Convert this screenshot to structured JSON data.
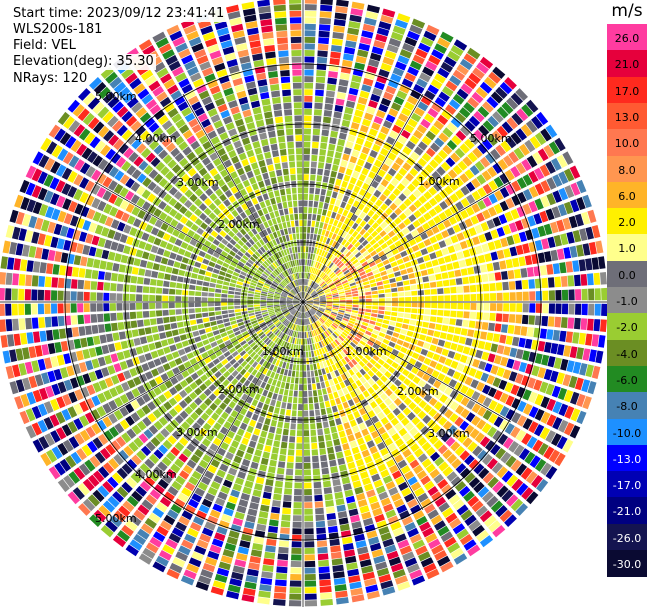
{
  "info": {
    "start_time": "Start time: 2023/09/12 23:41:41",
    "instrument": "WLS200s-181",
    "field": "Field: VEL",
    "elevation": "Elevation(deg): 35.30",
    "nrays": "NRays: 120"
  },
  "colorbar": {
    "unit": "m/s",
    "levels": [
      {
        "label": "26.0",
        "color": "#ff3ca0"
      },
      {
        "label": "21.0",
        "color": "#e6003c"
      },
      {
        "label": "17.0",
        "color": "#ff2a1e"
      },
      {
        "label": "13.0",
        "color": "#ff5a32"
      },
      {
        "label": "10.0",
        "color": "#ff7850"
      },
      {
        "label": "8.0",
        "color": "#ff9650"
      },
      {
        "label": "6.0",
        "color": "#ffb428"
      },
      {
        "label": "2.0",
        "color": "#fff000"
      },
      {
        "label": "1.0",
        "color": "#ffff8c"
      },
      {
        "label": "0.0",
        "color": "#6e6e78"
      },
      {
        "label": "-1.0",
        "color": "#8c8c8c"
      },
      {
        "label": "-2.0",
        "color": "#9acd32"
      },
      {
        "label": "-4.0",
        "color": "#6b8e23"
      },
      {
        "label": "-6.0",
        "color": "#228b22"
      },
      {
        "label": "-8.0",
        "color": "#4682b4"
      },
      {
        "label": "-10.0",
        "color": "#1e90ff"
      },
      {
        "label": "-13.0",
        "color": "#0000ff"
      },
      {
        "label": "-17.0",
        "color": "#0000b4"
      },
      {
        "label": "-21.0",
        "color": "#000080"
      },
      {
        "label": "-26.0",
        "color": "#141450"
      },
      {
        "label": "-30.0",
        "color": "#0a0a32"
      }
    ]
  },
  "range_labels": [
    {
      "text": "1.00km"
    },
    {
      "text": "1.00km"
    },
    {
      "text": "1.00km"
    },
    {
      "text": "2.00km"
    },
    {
      "text": "2.00km"
    },
    {
      "text": "2.00km"
    },
    {
      "text": "3.00km"
    },
    {
      "text": "3.00km"
    },
    {
      "text": "3.00km"
    },
    {
      "text": "4.00km"
    },
    {
      "text": "4.00km"
    },
    {
      "text": "5.00km"
    },
    {
      "text": "5.00km"
    },
    {
      "text": "5.00km"
    }
  ]
}
